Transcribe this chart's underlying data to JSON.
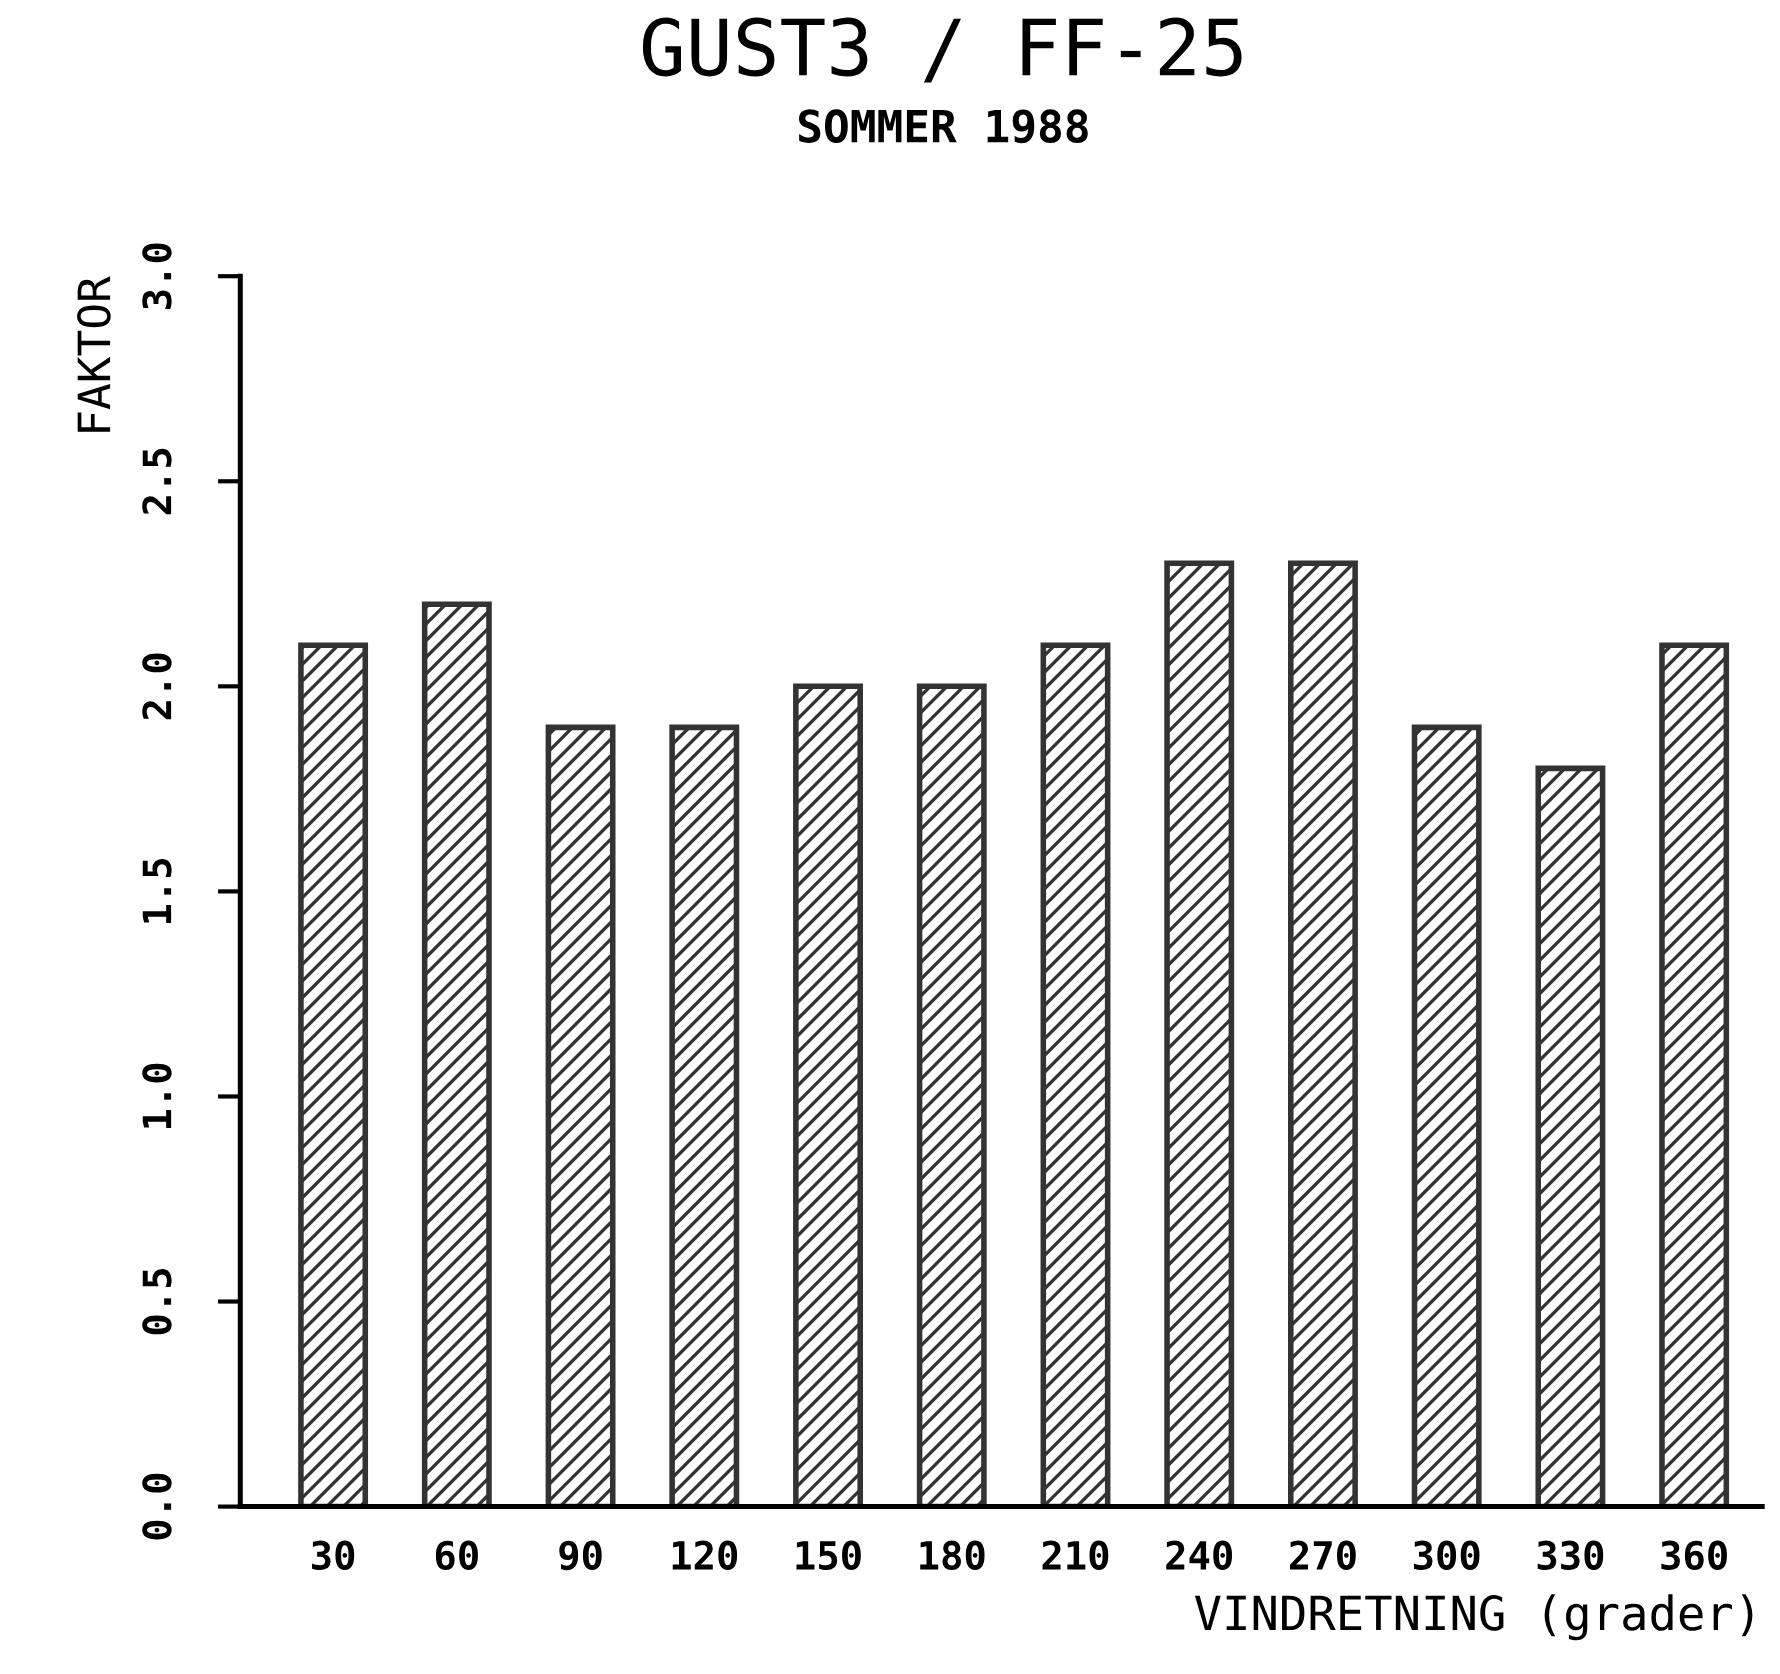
{
  "chart_data": {
    "type": "bar",
    "title": "GUST3 / FF-25",
    "subtitle": "SOMMER 1988",
    "xlabel": "VINDRETNING (grader)",
    "ylabel": "FAKTOR",
    "categories": [
      "30",
      "60",
      "90",
      "120",
      "150",
      "180",
      "210",
      "240",
      "270",
      "300",
      "330",
      "360"
    ],
    "values": [
      2.1,
      2.2,
      1.9,
      1.9,
      2.0,
      2.0,
      2.1,
      2.3,
      2.3,
      1.9,
      1.8,
      2.1
    ],
    "color": "#333333",
    "ylim": [
      0,
      3.0
    ],
    "yticks": [
      {
        "value": 0,
        "label": "0.0"
      },
      {
        "value": 0.5,
        "label": "0.5"
      },
      {
        "value": 1.0,
        "label": "1.0"
      },
      {
        "value": 1.5,
        "label": "1.5"
      },
      {
        "value": 2.0,
        "label": "2.0"
      },
      {
        "value": 2.5,
        "label": "2.5"
      },
      {
        "value": 3.0,
        "label": "3.0"
      }
    ],
    "grid": false,
    "legend": false
  }
}
